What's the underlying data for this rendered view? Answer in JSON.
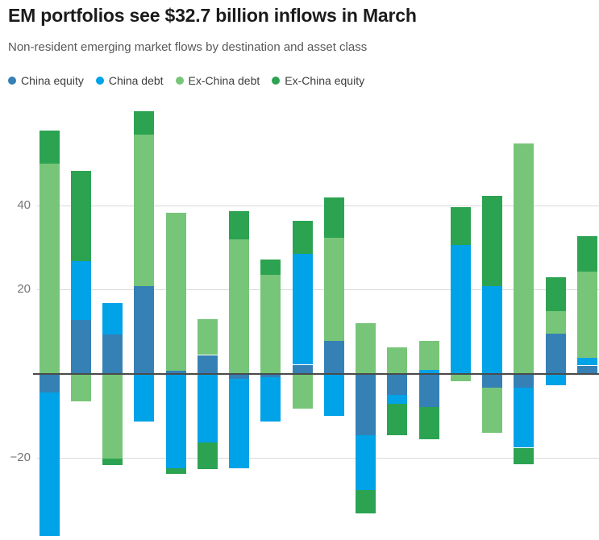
{
  "header": {
    "title": "EM portfolios see $32.7 billion inflows in March",
    "subtitle": "Non-resident emerging market flows by destination and asset class"
  },
  "colors": {
    "china_equity": "#3580b5",
    "china_debt": "#00a2e8",
    "exchina_debt": "#77c578",
    "exchina_equity": "#2ca351",
    "zero_line": "#4a4a4a",
    "gridline": "#d9d9d9",
    "tick_text": "#757575",
    "title_text": "#1b1b1b",
    "subtitle_text": "#585858"
  },
  "chart_data": {
    "type": "bar",
    "stacked": true,
    "title": "EM portfolios see $32.7 billion inflows in March",
    "subtitle": "Non-resident emerging market flows by destination and asset class",
    "legend_position": "top",
    "grid": true,
    "x_axis_labels_visible": false,
    "bar_count": 18,
    "yticks": [
      40,
      20,
      -20
    ],
    "ytick_labels": [
      "40",
      "20",
      "−20"
    ],
    "ylim_visible": [
      -40,
      63
    ],
    "series": [
      {
        "name": "China equity",
        "color_key": "china_equity",
        "values": [
          -4.5,
          12.7,
          9.2,
          20.7,
          0.7,
          4.4,
          -1.2,
          -0.8,
          2.1,
          7.7,
          -14.7,
          -5.0,
          -8.0,
          0,
          -3.4,
          -3.4,
          9.4,
          1.9
        ]
      },
      {
        "name": "China debt",
        "color_key": "china_debt",
        "values": [
          -34.1,
          14.0,
          7.5,
          -11.3,
          -22.4,
          -16.3,
          -21.2,
          -10.5,
          26.4,
          -10.1,
          -12.9,
          -2.2,
          0.9,
          30.6,
          20.7,
          -14.2,
          -2.7,
          1.9
        ]
      },
      {
        "name": "Ex-China debt",
        "color_key": "exchina_debt",
        "values": [
          49.8,
          -6.5,
          -20.1,
          36.0,
          37.4,
          8.6,
          31.8,
          23.5,
          -8.4,
          24.5,
          11.9,
          6.3,
          6.9,
          -1.9,
          -10.7,
          54.7,
          5.5,
          20.4
        ]
      },
      {
        "name": "Ex-China equity",
        "color_key": "exchina_equity",
        "values": [
          8.0,
          21.5,
          -1.7,
          5.6,
          -1.5,
          -6.3,
          6.7,
          3.6,
          7.7,
          9.6,
          -5.7,
          -7.5,
          -7.7,
          9.0,
          21.6,
          -4.0,
          7.9,
          8.4
        ]
      }
    ]
  }
}
